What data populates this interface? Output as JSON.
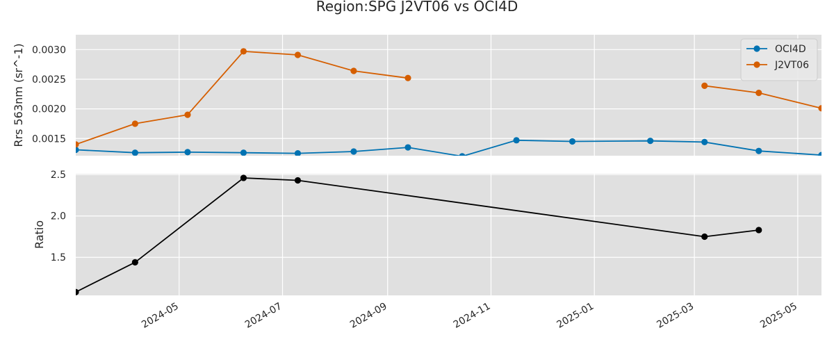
{
  "chart_data": {
    "type": "line",
    "title": "Region:SPG J2VT06 vs OCI4D",
    "x_ticks": [
      "2024-05",
      "2024-07",
      "2024-09",
      "2024-11",
      "2025-01",
      "2025-03",
      "2025-05"
    ],
    "x_range": [
      "2024-03-01",
      "2025-05-15"
    ],
    "grid": true,
    "panels": [
      {
        "ylabel": "Rrs 563nm (sr^-1)",
        "ylim": [
          0.00121,
          0.00325
        ],
        "y_ticks": [
          {
            "value": 0.0015,
            "label": "0.0015"
          },
          {
            "value": 0.002,
            "label": "0.0020"
          },
          {
            "value": 0.0025,
            "label": "0.0025"
          },
          {
            "value": 0.003,
            "label": "0.0030"
          }
        ],
        "legend_position": "upper right",
        "series": [
          {
            "name": "OCI4D",
            "color": "#0072b2",
            "points": [
              {
                "x": "2024-03-01",
                "y": 0.00131
              },
              {
                "x": "2024-04-05",
                "y": 0.00126
              },
              {
                "x": "2024-05-06",
                "y": 0.00127
              },
              {
                "x": "2024-06-08",
                "y": 0.00126
              },
              {
                "x": "2024-07-10",
                "y": 0.00125
              },
              {
                "x": "2024-08-12",
                "y": 0.00128
              },
              {
                "x": "2024-09-13",
                "y": 0.00135
              },
              {
                "x": "2024-10-15",
                "y": 0.0012
              },
              {
                "x": "2024-11-16",
                "y": 0.00147
              },
              {
                "x": "2024-12-19",
                "y": 0.00145
              },
              {
                "x": "2025-02-03",
                "y": 0.00146
              },
              {
                "x": "2025-03-07",
                "y": 0.00144
              },
              {
                "x": "2025-04-08",
                "y": 0.00129
              },
              {
                "x": "2025-05-15",
                "y": 0.00122
              }
            ]
          },
          {
            "name": "J2VT06",
            "color": "#d55e00",
            "points": [
              {
                "x": "2024-03-01",
                "y": 0.0014
              },
              {
                "x": "2024-04-05",
                "y": 0.00175
              },
              {
                "x": "2024-05-06",
                "y": 0.0019
              },
              {
                "x": "2024-06-08",
                "y": 0.00297
              },
              {
                "x": "2024-07-10",
                "y": 0.00291
              },
              {
                "x": "2024-08-12",
                "y": 0.00264
              },
              {
                "x": "2024-09-13",
                "y": 0.00252
              },
              {
                "x": null,
                "y": null
              },
              {
                "x": "2025-03-07",
                "y": 0.00239
              },
              {
                "x": "2025-04-08",
                "y": 0.00227
              },
              {
                "x": "2025-05-15",
                "y": 0.00201
              }
            ]
          }
        ]
      },
      {
        "ylabel": "Ratio",
        "ylim": [
          1.04,
          2.51
        ],
        "y_ticks": [
          {
            "value": 1.5,
            "label": "1.5"
          },
          {
            "value": 2.0,
            "label": "2.0"
          },
          {
            "value": 2.5,
            "label": "2.5"
          }
        ],
        "series": [
          {
            "color": "#000000",
            "points": [
              {
                "x": "2024-03-01",
                "y": 1.08
              },
              {
                "x": "2024-04-05",
                "y": 1.44
              },
              {
                "x": "2024-06-08",
                "y": 2.46
              },
              {
                "x": "2024-07-10",
                "y": 2.43
              },
              {
                "x": "2025-03-07",
                "y": 1.75
              },
              {
                "x": "2025-04-08",
                "y": 1.83
              }
            ]
          }
        ]
      }
    ]
  }
}
